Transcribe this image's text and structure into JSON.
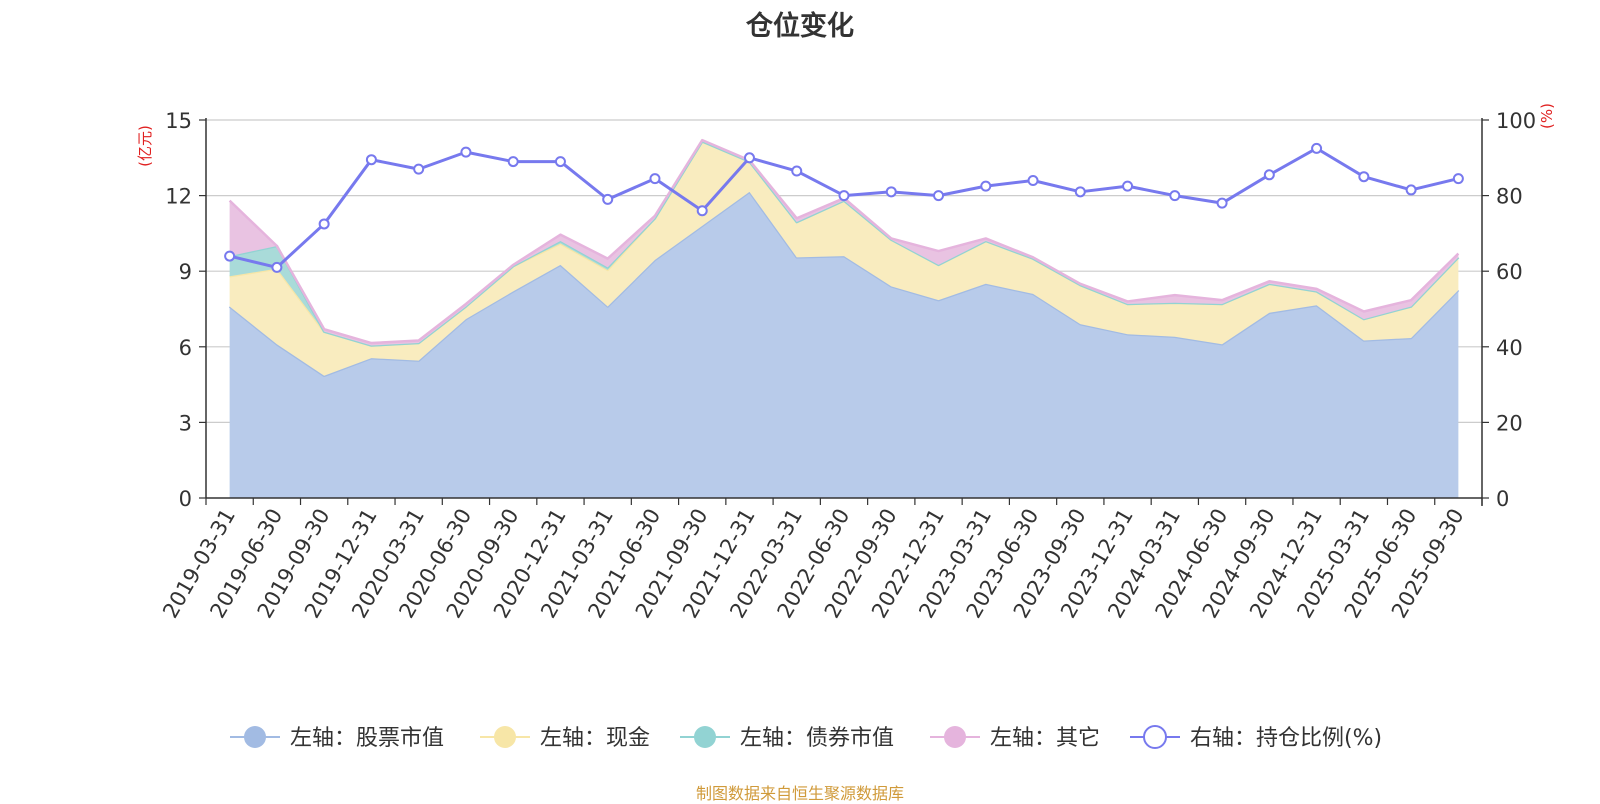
{
  "chart_data": {
    "type": "area",
    "title": "仓位变化",
    "source": "制图数据来自恒生聚源数据库",
    "left_axis": {
      "unit": "(亿元)",
      "ticks": [
        0,
        3,
        6,
        9,
        12,
        15
      ],
      "range": [
        0,
        15
      ]
    },
    "right_axis": {
      "unit": "(%)",
      "ticks": [
        0,
        20,
        40,
        60,
        80,
        100
      ],
      "range": [
        0,
        100
      ]
    },
    "categories": [
      "2019-03-31",
      "2019-06-30",
      "2019-09-30",
      "2019-12-31",
      "2020-03-31",
      "2020-06-30",
      "2020-09-30",
      "2020-12-31",
      "2021-03-31",
      "2021-06-30",
      "2021-09-30",
      "2021-12-31",
      "2022-03-31",
      "2022-06-30",
      "2022-09-30",
      "2022-12-31",
      "2023-03-31",
      "2023-06-30",
      "2023-09-30",
      "2023-12-31",
      "2024-03-31",
      "2024-06-30",
      "2024-09-30",
      "2024-12-31",
      "2025-03-31",
      "2025-06-30",
      "2025-09-30"
    ],
    "series": [
      {
        "name": "左轴：股票市值",
        "axis": "left",
        "stack": true,
        "color": "#a2bbe3",
        "fill": "#b8cbea",
        "values": [
          7.6,
          6.1,
          4.85,
          5.55,
          5.45,
          7.1,
          8.2,
          9.25,
          7.6,
          9.45,
          10.8,
          12.15,
          9.55,
          9.6,
          8.4,
          7.85,
          8.5,
          8.1,
          6.9,
          6.5,
          6.4,
          6.1,
          7.35,
          7.65,
          6.25,
          6.35,
          8.25
        ]
      },
      {
        "name": "左轴：现金",
        "axis": "left",
        "stack": true,
        "color": "#f7e6a7",
        "fill": "#f9ecbf",
        "values": [
          1.2,
          3.0,
          1.75,
          0.5,
          0.7,
          0.5,
          1.0,
          0.85,
          1.45,
          1.65,
          3.35,
          1.2,
          1.4,
          2.2,
          1.85,
          1.4,
          1.7,
          1.4,
          1.55,
          1.2,
          1.35,
          1.6,
          1.15,
          0.55,
          0.85,
          1.25,
          1.3
        ]
      },
      {
        "name": "左轴：债券市值",
        "axis": "left",
        "stack": true,
        "color": "#92d3d3",
        "fill": "#a9dbd9",
        "values": [
          0.8,
          0.9,
          0,
          0,
          0,
          0,
          0,
          0.1,
          0.1,
          0,
          0,
          0,
          0,
          0,
          0,
          0,
          0,
          0,
          0,
          0,
          0,
          0,
          0,
          0,
          0,
          0,
          0
        ]
      },
      {
        "name": "左轴：其它",
        "axis": "left",
        "stack": true,
        "color": "#e5b4dd",
        "fill": "#e9c3e2",
        "values": [
          2.2,
          0.0,
          0.1,
          0.1,
          0.1,
          0.1,
          0.05,
          0.25,
          0.35,
          0.1,
          0.05,
          0.05,
          0.15,
          0.1,
          0.05,
          0.55,
          0.1,
          0.05,
          0.05,
          0.1,
          0.3,
          0.15,
          0.1,
          0.1,
          0.3,
          0.25,
          0.15
        ]
      },
      {
        "name": "右轴：持仓比例(%)",
        "axis": "right",
        "type": "line",
        "color": "#7779ee",
        "values": [
          64,
          61,
          72.5,
          89.5,
          87,
          91.5,
          89,
          89,
          79,
          84.5,
          76,
          90,
          86.5,
          80,
          81,
          80,
          82.5,
          84,
          81,
          82.5,
          80,
          78,
          85.5,
          92.5,
          85,
          81.5,
          84.5
        ]
      }
    ]
  }
}
